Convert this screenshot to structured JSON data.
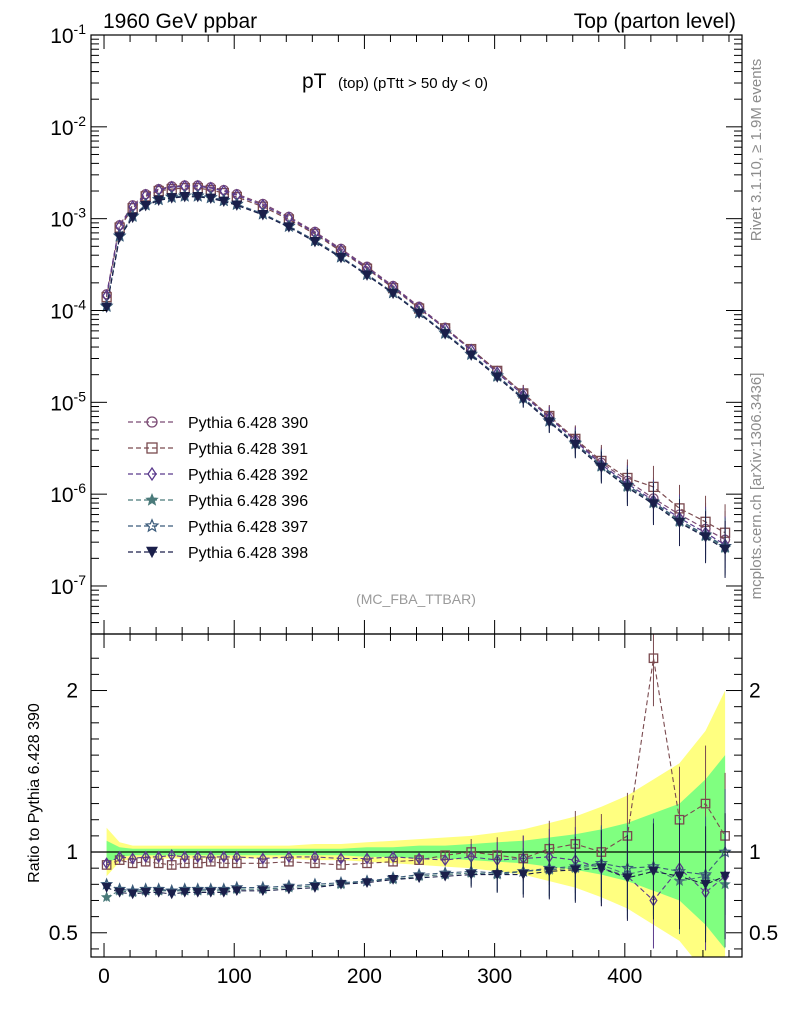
{
  "header": {
    "left": "1960 GeV ppbar",
    "right": "Top (parton level)"
  },
  "side_text": {
    "rivet": "Rivet 3.1.10, ≥ 1.9M events",
    "mcplots": "mcplots.cern.ch [arXiv:1306.3436]"
  },
  "analysis_tag": "(MC_FBA_TTBAR)",
  "chart_data": [
    {
      "type": "scatter",
      "title": "pT (top) (pTtt > 50 dy < 0)",
      "title_main": "pT",
      "title_sub": "(top)  (pTtt > 50 dy < 0)",
      "xlabel": "",
      "ylabel": "",
      "xlim": [
        -10,
        490
      ],
      "ylim": [
        3e-08,
        0.1
      ],
      "log_y": true,
      "y_tick_labels": [
        {
          "exp": "-1",
          "v": 0.1
        },
        {
          "exp": "-2",
          "v": 0.01
        },
        {
          "exp": "-3",
          "v": 0.001
        },
        {
          "exp": "-4",
          "v": 0.0001
        },
        {
          "exp": "-5",
          "v": 1e-05
        },
        {
          "exp": "-6",
          "v": 1e-06
        },
        {
          "exp": "-7",
          "v": 1e-07
        }
      ],
      "legend_position": "lower-left",
      "x": [
        2,
        12,
        22,
        32,
        42,
        52,
        62,
        72,
        82,
        92,
        102,
        122,
        142,
        162,
        182,
        202,
        222,
        242,
        262,
        282,
        302,
        322,
        342,
        362,
        382,
        402,
        422,
        442,
        462,
        477
      ],
      "series": [
        {
          "name": "Pythia 6.428 390",
          "marker": "open-circle",
          "color": "#7a4a73",
          "values": [
            0.00015,
            0.00085,
            0.0014,
            0.00185,
            0.0021,
            0.00225,
            0.0023,
            0.0023,
            0.0022,
            0.00205,
            0.00185,
            0.00145,
            0.00105,
            0.00072,
            0.00047,
            0.0003,
            0.000185,
            0.00011,
            6.5e-05,
            3.8e-05,
            2.2e-05,
            1.25e-05,
            7e-06,
            3.9e-06,
            2.2e-06,
            1.4e-06,
            9e-07,
            6e-07,
            4.2e-07,
            3.2e-07
          ]
        },
        {
          "name": "Pythia 6.428 391",
          "marker": "open-square",
          "color": "#7a4a4f",
          "values": [
            0.00014,
            0.0008,
            0.0013,
            0.00175,
            0.002,
            0.0021,
            0.00215,
            0.00215,
            0.00205,
            0.0019,
            0.00172,
            0.00135,
            0.00098,
            0.00068,
            0.00044,
            0.000285,
            0.000175,
            0.000105,
            6.4e-05,
            3.8e-05,
            2.2e-05,
            1.25e-05,
            7.1e-06,
            4e-06,
            2.3e-06,
            1.5e-06,
            1.2e-06,
            7e-07,
            5e-07,
            3.8e-07
          ]
        },
        {
          "name": "Pythia 6.428 392",
          "marker": "open-diamond",
          "color": "#5a3a8c",
          "values": [
            0.000145,
            0.00083,
            0.00135,
            0.0018,
            0.00205,
            0.0022,
            0.00225,
            0.00225,
            0.00215,
            0.002,
            0.0018,
            0.0014,
            0.00102,
            0.0007,
            0.000455,
            0.00029,
            0.00018,
            0.000107,
            6.3e-05,
            3.7e-05,
            2.1e-05,
            1.2e-05,
            6.8e-06,
            3.8e-06,
            2.1e-06,
            1.3e-06,
            8.5e-07,
            5.5e-07,
            3.8e-07,
            2.8e-07
          ]
        },
        {
          "name": "Pythia 6.428 396",
          "marker": "filled-star",
          "color": "#4a7a7a",
          "values": [
            0.00011,
            0.00064,
            0.00105,
            0.0014,
            0.0016,
            0.0017,
            0.00175,
            0.00175,
            0.00168,
            0.00156,
            0.00142,
            0.00112,
            0.00082,
            0.00057,
            0.00038,
            0.000245,
            0.000155,
            9.4e-05,
            5.6e-05,
            3.3e-05,
            1.9e-05,
            1.1e-05,
            6.2e-06,
            3.5e-06,
            2e-06,
            1.2e-06,
            8e-07,
            5e-07,
            3.5e-07,
            2.6e-07
          ]
        },
        {
          "name": "Pythia 6.428 397",
          "marker": "open-star",
          "color": "#3a5a7a",
          "values": [
            0.000112,
            0.00065,
            0.00107,
            0.00142,
            0.00162,
            0.00172,
            0.00177,
            0.00177,
            0.0017,
            0.00158,
            0.00144,
            0.00113,
            0.00083,
            0.00058,
            0.000385,
            0.000248,
            0.000157,
            9.5e-05,
            5.7e-05,
            3.35e-05,
            1.95e-05,
            1.12e-05,
            6.3e-06,
            3.6e-06,
            2.05e-06,
            1.25e-06,
            8.2e-07,
            5.2e-07,
            3.6e-07,
            2.7e-07
          ]
        },
        {
          "name": "Pythia 6.428 398",
          "marker": "filled-triangle-down",
          "color": "#1a1f4a",
          "values": [
            0.000108,
            0.00063,
            0.00103,
            0.00138,
            0.00158,
            0.00168,
            0.00173,
            0.00173,
            0.00166,
            0.00154,
            0.0014,
            0.0011,
            0.00081,
            0.00056,
            0.000375,
            0.000242,
            0.000153,
            9.3e-05,
            5.55e-05,
            3.25e-05,
            1.88e-05,
            1.08e-05,
            6.1e-06,
            3.45e-06,
            1.95e-06,
            1.18e-06,
            7.8e-07,
            4.9e-07,
            3.4e-07,
            2.5e-07
          ]
        }
      ]
    },
    {
      "type": "scatter",
      "title": "",
      "xlabel": "",
      "ylabel": "Ratio to Pythia 6.428 390",
      "xlim": [
        -10,
        490
      ],
      "ylim": [
        0.35,
        2.35
      ],
      "x_ticks": [
        0,
        100,
        200,
        300,
        400
      ],
      "y_ticks": [
        0.5,
        1,
        2
      ],
      "reference_line": 1,
      "band_outer_color": "#ffff80",
      "band_inner_color": "#80ff80",
      "x": [
        2,
        12,
        22,
        32,
        42,
        52,
        62,
        72,
        82,
        92,
        102,
        122,
        142,
        162,
        182,
        202,
        222,
        242,
        262,
        282,
        302,
        322,
        342,
        362,
        382,
        402,
        422,
        442,
        462,
        477
      ],
      "band_outer": [
        0.15,
        0.06,
        0.04,
        0.04,
        0.04,
        0.04,
        0.04,
        0.04,
        0.04,
        0.04,
        0.04,
        0.04,
        0.04,
        0.05,
        0.05,
        0.06,
        0.07,
        0.08,
        0.09,
        0.1,
        0.12,
        0.14,
        0.18,
        0.22,
        0.28,
        0.35,
        0.45,
        0.55,
        0.75,
        1.0
      ],
      "band_inner": [
        0.07,
        0.03,
        0.02,
        0.02,
        0.02,
        0.02,
        0.02,
        0.02,
        0.02,
        0.02,
        0.02,
        0.02,
        0.02,
        0.02,
        0.02,
        0.03,
        0.03,
        0.04,
        0.04,
        0.05,
        0.06,
        0.07,
        0.09,
        0.11,
        0.14,
        0.18,
        0.24,
        0.3,
        0.45,
        0.6
      ],
      "series": [
        {
          "name": "Pythia 6.428 391",
          "values": [
            0.92,
            0.95,
            0.93,
            0.94,
            0.93,
            0.92,
            0.93,
            0.93,
            0.94,
            0.93,
            0.93,
            0.93,
            0.94,
            0.93,
            0.92,
            0.93,
            0.94,
            0.95,
            0.98,
            1.0,
            0.98,
            0.96,
            1.02,
            1.05,
            1.0,
            1.1,
            2.2,
            1.2,
            1.3,
            1.1
          ]
        },
        {
          "name": "Pythia 6.428 392",
          "values": [
            0.93,
            0.97,
            0.96,
            0.97,
            0.97,
            0.98,
            0.97,
            0.97,
            0.97,
            0.97,
            0.97,
            0.96,
            0.97,
            0.97,
            0.96,
            0.96,
            0.97,
            0.96,
            0.95,
            0.97,
            0.95,
            0.96,
            0.97,
            0.95,
            0.9,
            0.85,
            0.7,
            0.9,
            0.75,
            0.85
          ]
        },
        {
          "name": "Pythia 6.428 396",
          "values": [
            0.72,
            0.76,
            0.75,
            0.76,
            0.76,
            0.76,
            0.76,
            0.76,
            0.76,
            0.76,
            0.77,
            0.77,
            0.78,
            0.79,
            0.8,
            0.82,
            0.83,
            0.85,
            0.86,
            0.87,
            0.86,
            0.88,
            0.89,
            0.9,
            0.92,
            0.86,
            0.9,
            0.82,
            0.85,
            0.8
          ]
        },
        {
          "name": "Pythia 6.428 397",
          "values": [
            0.8,
            0.77,
            0.76,
            0.77,
            0.77,
            0.76,
            0.77,
            0.77,
            0.77,
            0.77,
            0.78,
            0.78,
            0.79,
            0.8,
            0.81,
            0.82,
            0.84,
            0.86,
            0.87,
            0.88,
            0.87,
            0.88,
            0.9,
            0.91,
            0.93,
            0.9,
            0.91,
            0.88,
            0.86,
            1.0
          ]
        },
        {
          "name": "Pythia 6.428 398",
          "values": [
            0.78,
            0.75,
            0.74,
            0.75,
            0.75,
            0.74,
            0.75,
            0.75,
            0.75,
            0.75,
            0.76,
            0.76,
            0.77,
            0.78,
            0.8,
            0.81,
            0.83,
            0.84,
            0.85,
            0.86,
            0.86,
            0.86,
            0.88,
            0.89,
            0.9,
            0.84,
            0.88,
            0.85,
            0.8,
            0.85
          ]
        }
      ]
    }
  ]
}
